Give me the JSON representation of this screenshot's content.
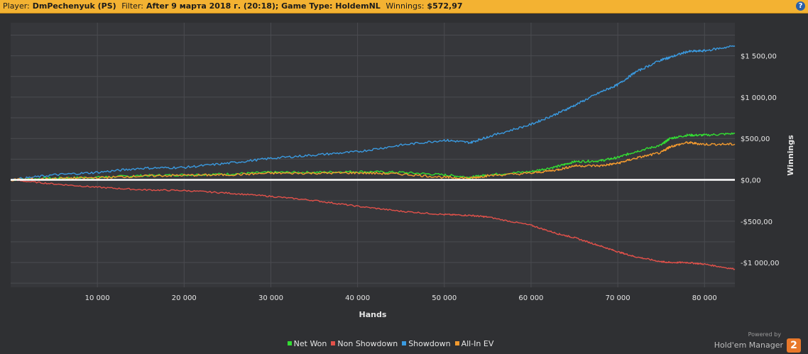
{
  "header": {
    "player_label": "Player:",
    "player_value": "DmPechenyuk (PS)",
    "filter_label": "Filter:",
    "filter_value": "After 9 марта 2018 г. (20:18); Game Type: HoldemNL",
    "winnings_label": "Winnings:",
    "winnings_value": "$572,97",
    "help_glyph": "?"
  },
  "brand": {
    "powered": "Powered by",
    "name": "Hold'em Manager",
    "badge": "2"
  },
  "chart_data": {
    "type": "line",
    "title": "",
    "xlabel": "Hands",
    "ylabel": "Winnings",
    "xlim": [
      0,
      83500
    ],
    "ylim": [
      -1300,
      1900
    ],
    "x_ticks": [
      10000,
      20000,
      30000,
      40000,
      50000,
      60000,
      70000,
      80000
    ],
    "x_tick_labels": [
      "10 000",
      "20 000",
      "30 000",
      "40 000",
      "50 000",
      "60 000",
      "70 000",
      "80 000"
    ],
    "y_ticks": [
      -1000,
      -500,
      0,
      500,
      1000,
      1500
    ],
    "y_tick_labels": [
      "-$1 000,00",
      "-$500,00",
      "$0,00",
      "$500,00",
      "$1 000,00",
      "$1 500,00"
    ],
    "grid": true,
    "legend_position": "bottom",
    "x": [
      0,
      5000,
      10000,
      15000,
      20000,
      25000,
      30000,
      35000,
      40000,
      45000,
      50000,
      53000,
      55000,
      60000,
      63000,
      65000,
      68000,
      70000,
      72000,
      75000,
      76000,
      78000,
      80000,
      83500
    ],
    "series": [
      {
        "name": "Net Won",
        "color": "#33dd33",
        "values": [
          0,
          20,
          30,
          50,
          60,
          70,
          90,
          90,
          100,
          90,
          60,
          30,
          60,
          100,
          160,
          220,
          230,
          270,
          340,
          420,
          500,
          540,
          540,
          560
        ]
      },
      {
        "name": "Non Showdown",
        "color": "#e2514a",
        "values": [
          0,
          -50,
          -90,
          -120,
          -130,
          -160,
          -200,
          -250,
          -320,
          -380,
          -420,
          -430,
          -450,
          -550,
          -650,
          -700,
          -800,
          -870,
          -930,
          -990,
          -1000,
          -1000,
          -1020,
          -1080
        ]
      },
      {
        "name": "Showdown",
        "color": "#3a9ae0",
        "values": [
          0,
          60,
          90,
          140,
          150,
          200,
          260,
          300,
          340,
          420,
          480,
          450,
          520,
          670,
          800,
          900,
          1060,
          1150,
          1300,
          1450,
          1480,
          1550,
          1560,
          1620
        ]
      },
      {
        "name": "All-In EV",
        "color": "#f39a2e",
        "values": [
          0,
          15,
          25,
          45,
          55,
          60,
          80,
          80,
          85,
          70,
          30,
          20,
          50,
          80,
          120,
          170,
          170,
          200,
          260,
          330,
          400,
          450,
          430,
          430
        ]
      }
    ]
  }
}
